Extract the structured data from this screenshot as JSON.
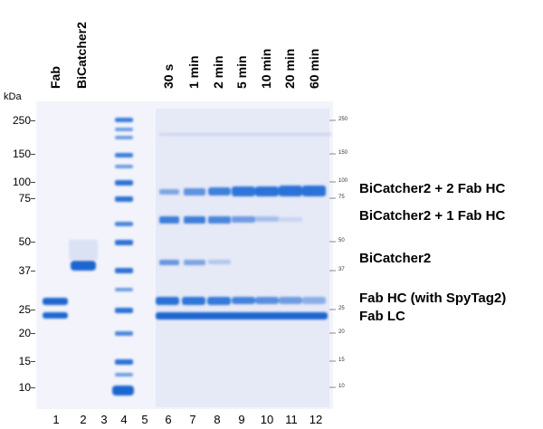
{
  "gel": {
    "unit_label": "kDa",
    "lane_headers": [
      {
        "lane": 1,
        "text": "Fab"
      },
      {
        "lane": 2,
        "text": "BiCatcher2"
      },
      {
        "lane": 6,
        "text": "30 s"
      },
      {
        "lane": 7,
        "text": "1 min"
      },
      {
        "lane": 8,
        "text": "2 min"
      },
      {
        "lane": 9,
        "text": "5 min"
      },
      {
        "lane": 10,
        "text": "10 min"
      },
      {
        "lane": 11,
        "text": "20 min"
      },
      {
        "lane": 12,
        "text": "60 min"
      }
    ],
    "mw_markers": [
      "250",
      "150",
      "100",
      "75",
      "50",
      "37",
      "25",
      "20",
      "15",
      "10"
    ],
    "lane_numbers": [
      "1",
      "2",
      "3",
      "4",
      "5",
      "6",
      "7",
      "8",
      "9",
      "10",
      "11",
      "12"
    ],
    "band_labels": [
      "BiCatcher2 + 2 Fab HC",
      "BiCatcher2 + 1 Fab HC",
      "BiCatcher2",
      "Fab HC (with SpyTag2)",
      "Fab LC"
    ],
    "right_ladder_labels": [
      "250",
      "150",
      "100",
      "75",
      "50",
      "37",
      "25",
      "20",
      "15",
      "10"
    ]
  }
}
